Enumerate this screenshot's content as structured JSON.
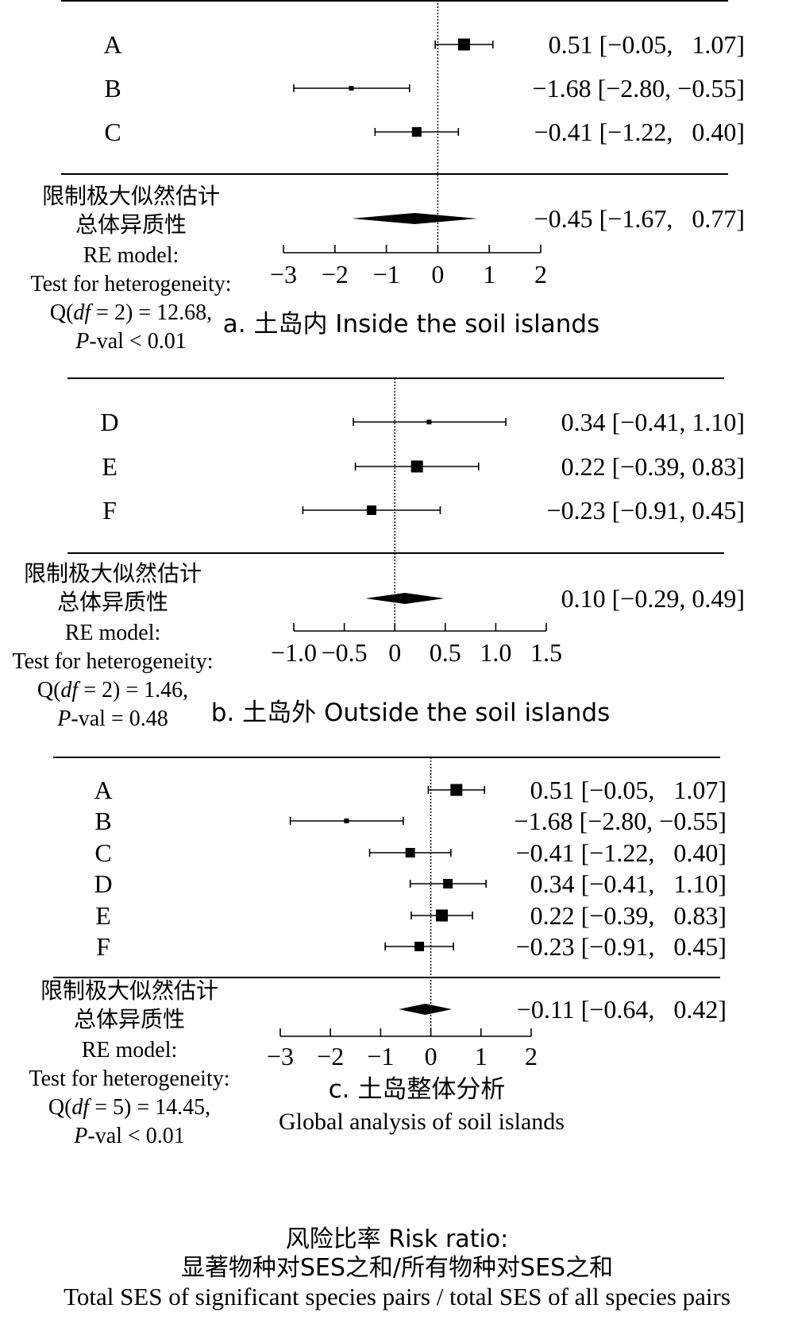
{
  "chart_data": [
    {
      "type": "forest",
      "caption": "a. 土岛内 Inside the soil islands",
      "studies": [
        {
          "label": "A",
          "est": 0.51,
          "lo": -0.05,
          "hi": 1.07,
          "text": "0.51 [−0.05,   1.07]"
        },
        {
          "label": "B",
          "est": -1.68,
          "lo": -2.8,
          "hi": -0.55,
          "text": "−1.68 [−2.80, −0.55]"
        },
        {
          "label": "C",
          "est": -0.41,
          "lo": -1.22,
          "hi": 0.4,
          "text": "−0.41 [−1.22,   0.40]"
        }
      ],
      "summary": {
        "est": -0.45,
        "lo": -1.67,
        "hi": 0.77,
        "text": "−0.45 [−1.67,   0.77]"
      },
      "model_lines": [
        "限制极大似然估计",
        "总体异质性",
        "RE model:",
        "Test for heterogeneity:",
        "Q(df = 2) = 12.68,",
        "P-val < 0.01"
      ],
      "xticks": [
        -3,
        -2,
        -1,
        0,
        1,
        2
      ],
      "xtick_labels": [
        "−3",
        "−2",
        "−1",
        "0",
        "1",
        "2"
      ],
      "xlim": [
        -3,
        2
      ]
    },
    {
      "type": "forest",
      "caption": "b. 土岛外 Outside the soil islands",
      "studies": [
        {
          "label": "D",
          "est": 0.34,
          "lo": -0.41,
          "hi": 1.1,
          "text": "0.34 [−0.41, 1.10]"
        },
        {
          "label": "E",
          "est": 0.22,
          "lo": -0.39,
          "hi": 0.83,
          "text": "0.22 [−0.39, 0.83]"
        },
        {
          "label": "F",
          "est": -0.23,
          "lo": -0.91,
          "hi": 0.45,
          "text": "−0.23 [−0.91, 0.45]"
        }
      ],
      "summary": {
        "est": 0.1,
        "lo": -0.29,
        "hi": 0.49,
        "text": "0.10 [−0.29, 0.49]"
      },
      "model_lines": [
        "限制极大似然估计",
        "总体异质性",
        "RE model:",
        "Test for heterogeneity:",
        "Q(df = 2) = 1.46,",
        "P-val = 0.48"
      ],
      "xticks": [
        -1.0,
        -0.5,
        0,
        0.5,
        1.0,
        1.5
      ],
      "xtick_labels": [
        "−1.0",
        "−0.5",
        "0",
        "0.5",
        "1.0",
        "1.5"
      ],
      "xlim": [
        -1.0,
        1.5
      ]
    },
    {
      "type": "forest",
      "caption": "c. 土岛整体分析",
      "caption2": "Global analysis of soil islands",
      "studies": [
        {
          "label": "A",
          "est": 0.51,
          "lo": -0.05,
          "hi": 1.07,
          "text": "0.51 [−0.05,   1.07]"
        },
        {
          "label": "B",
          "est": -1.68,
          "lo": -2.8,
          "hi": -0.55,
          "text": "−1.68 [−2.80, −0.55]"
        },
        {
          "label": "C",
          "est": -0.41,
          "lo": -1.22,
          "hi": 0.4,
          "text": "−0.41 [−1.22,   0.40]"
        },
        {
          "label": "D",
          "est": 0.34,
          "lo": -0.41,
          "hi": 1.1,
          "text": "0.34 [−0.41,   1.10]"
        },
        {
          "label": "E",
          "est": 0.22,
          "lo": -0.39,
          "hi": 0.83,
          "text": "0.22 [−0.39,   0.83]"
        },
        {
          "label": "F",
          "est": -0.23,
          "lo": -0.91,
          "hi": 0.45,
          "text": "−0.23 [−0.91,   0.45]"
        }
      ],
      "summary": {
        "est": -0.11,
        "lo": -0.64,
        "hi": 0.42,
        "text": "−0.11 [−0.64,   0.42]"
      },
      "model_lines": [
        "限制极大似然估计",
        "总体异质性",
        "RE model:",
        "Test for heterogeneity:",
        "Q(df = 5) = 14.45,",
        "P-val < 0.01"
      ],
      "xticks": [
        -3,
        -2,
        -1,
        0,
        1,
        2
      ],
      "xtick_labels": [
        "−3",
        "−2",
        "−1",
        "0",
        "1",
        "2"
      ],
      "xlim": [
        -3,
        2
      ]
    }
  ],
  "footer": {
    "line1": "风险比率 Risk ratio:",
    "line2": "显著物种对SES之和/所有物种对SES之和",
    "line3": "Total SES of significant species pairs / total SES of all species pairs"
  }
}
